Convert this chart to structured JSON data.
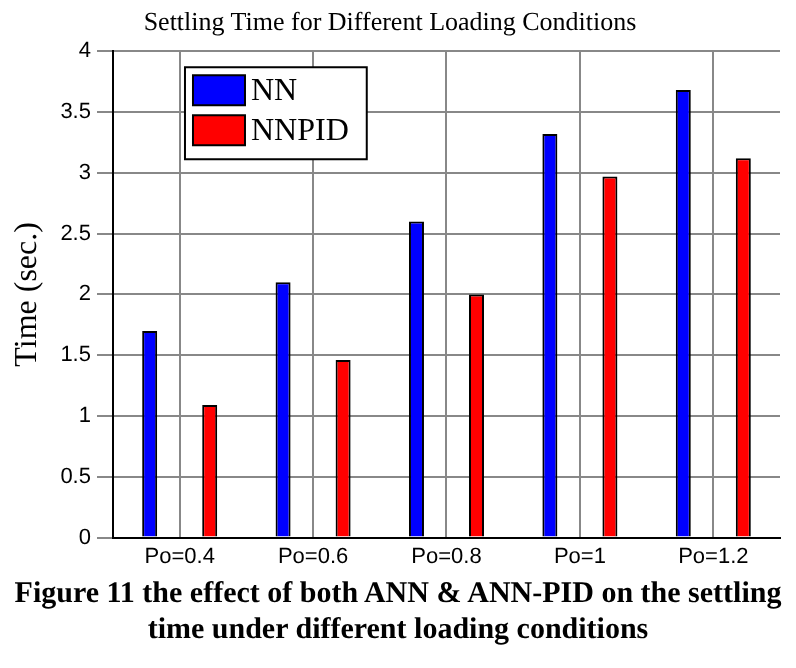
{
  "chart_data": {
    "type": "bar",
    "title": "Settling Time for Different Loading Conditions",
    "ylabel": "Time (sec.)",
    "categories": [
      "Po=0.4",
      "Po=0.6",
      "Po=0.8",
      "Po=1",
      "Po=1.2"
    ],
    "series": [
      {
        "name": "NN",
        "color": "#0000ff",
        "values": [
          1.7,
          2.1,
          2.6,
          3.32,
          3.68
        ]
      },
      {
        "name": "NNPID",
        "color": "#ff0000",
        "values": [
          1.09,
          1.46,
          2.0,
          2.97,
          3.12
        ]
      }
    ],
    "ylim": [
      0,
      4
    ],
    "yticks": [
      0,
      0.5,
      1,
      1.5,
      2,
      2.5,
      3,
      3.5,
      4
    ],
    "grid": true,
    "legend": "top left",
    "annotations": [
      "Figure 11 the effect of both ANN & ANN-PID on the settling time under different loading conditions"
    ]
  }
}
